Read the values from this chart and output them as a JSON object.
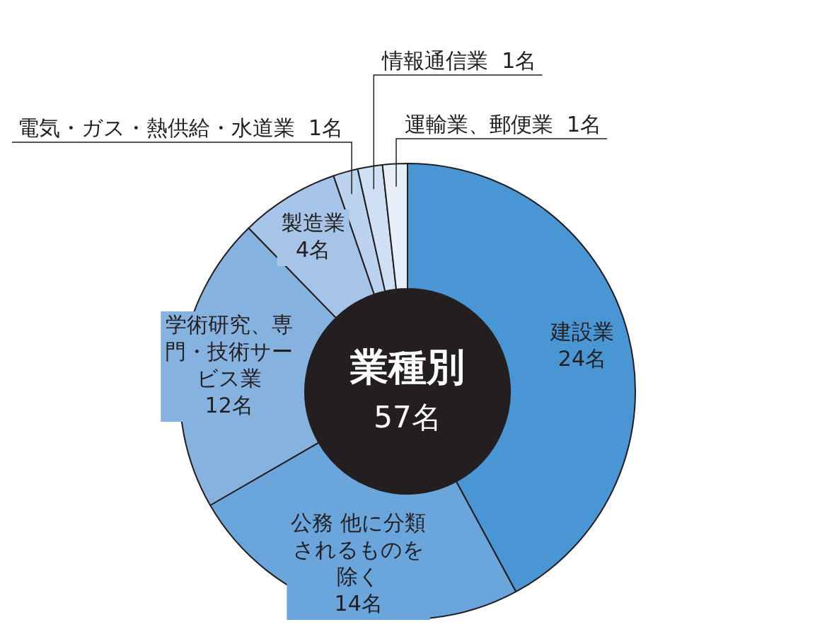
{
  "chart_data": {
    "type": "donut",
    "title": "業種別",
    "subtitle": "57名",
    "categories": [
      "建設業",
      "公務 他に分類されるものを除く",
      "学術研究、専門・技術サービス業",
      "製造業",
      "電気・ガス・熱供給・水道業",
      "情報通信業",
      "運輸業、郵便業"
    ],
    "values": [
      24,
      14,
      12,
      4,
      1,
      1,
      1
    ],
    "value_labels": [
      "24名",
      "14名",
      "12名",
      "4名",
      "1名",
      "1名",
      "1名"
    ],
    "colors": [
      "#4a96d5",
      "#6aa5dc",
      "#86b2e0",
      "#a6c4e8",
      "#bcd3ef",
      "#d0e0f4",
      "#e8eff9"
    ],
    "legend": false
  }
}
